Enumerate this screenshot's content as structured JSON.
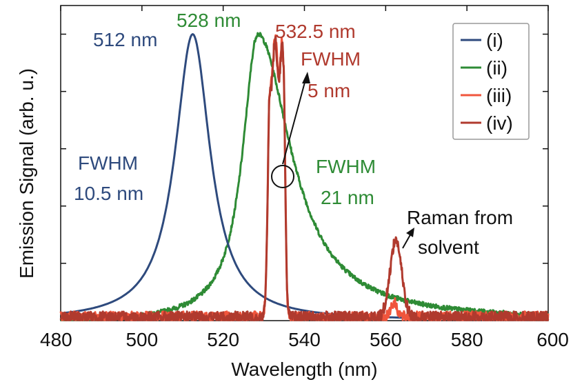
{
  "chart_data": {
    "type": "line",
    "xlabel": "Wavelength (nm)",
    "ylabel": "Emission Signal (arb. u.)",
    "xlim": [
      480,
      600
    ],
    "ylim": [
      0,
      1.1
    ],
    "x_ticks": [
      "480",
      "500",
      "520",
      "540",
      "560",
      "580",
      "600"
    ],
    "y_tick_values": [
      0.2,
      0.4,
      0.6,
      0.8,
      1.0
    ],
    "grid": false,
    "legend_position": "top-right",
    "series": [
      {
        "name": "(i)",
        "color": "#2e4a7d",
        "shape": "lorentzian",
        "center": 512.5,
        "fwhm": 10.5,
        "peak": 1.0
      },
      {
        "name": "(ii)",
        "color": "#2e8b35",
        "shape": "asymmetric",
        "center": 528.5,
        "fwhm_left": 9,
        "fwhm_right": 20,
        "peak": 1.0,
        "noise": 0.008
      },
      {
        "name": "(iii)",
        "color": "#f0553c",
        "shape": "flat-top",
        "start": 531,
        "end": 535.3,
        "peak": 0.98,
        "noise": 0.02,
        "extra_peaks": [
          {
            "center": 562,
            "height": 0.05,
            "width": 1.2
          }
        ]
      },
      {
        "name": "(iv)",
        "color": "#b03a2e",
        "shape": "flat-top",
        "start": 531,
        "end": 535.3,
        "peak": 0.97,
        "noise": 0.02,
        "extra_peaks": [
          {
            "center": 562.5,
            "height": 0.27,
            "width": 2.0
          }
        ]
      }
    ],
    "annotations": [
      {
        "text": "512 nm",
        "color": "#2e4a7d"
      },
      {
        "text": "528 nm",
        "color": "#2e8b35"
      },
      {
        "text": "532.5 nm",
        "color": "#b03a2e"
      },
      {
        "text": "FWHM",
        "color": "#b03a2e"
      },
      {
        "text": "5 nm",
        "color": "#b03a2e"
      },
      {
        "text": "FWHM",
        "color": "#2e4a7d"
      },
      {
        "text": "10.5 nm",
        "color": "#2e4a7d"
      },
      {
        "text": "FWHM",
        "color": "#2e8b35"
      },
      {
        "text": "21 nm",
        "color": "#2e8b35"
      },
      {
        "text": "Raman from",
        "color": "#111111"
      },
      {
        "text": "solvent",
        "color": "#111111"
      }
    ]
  }
}
